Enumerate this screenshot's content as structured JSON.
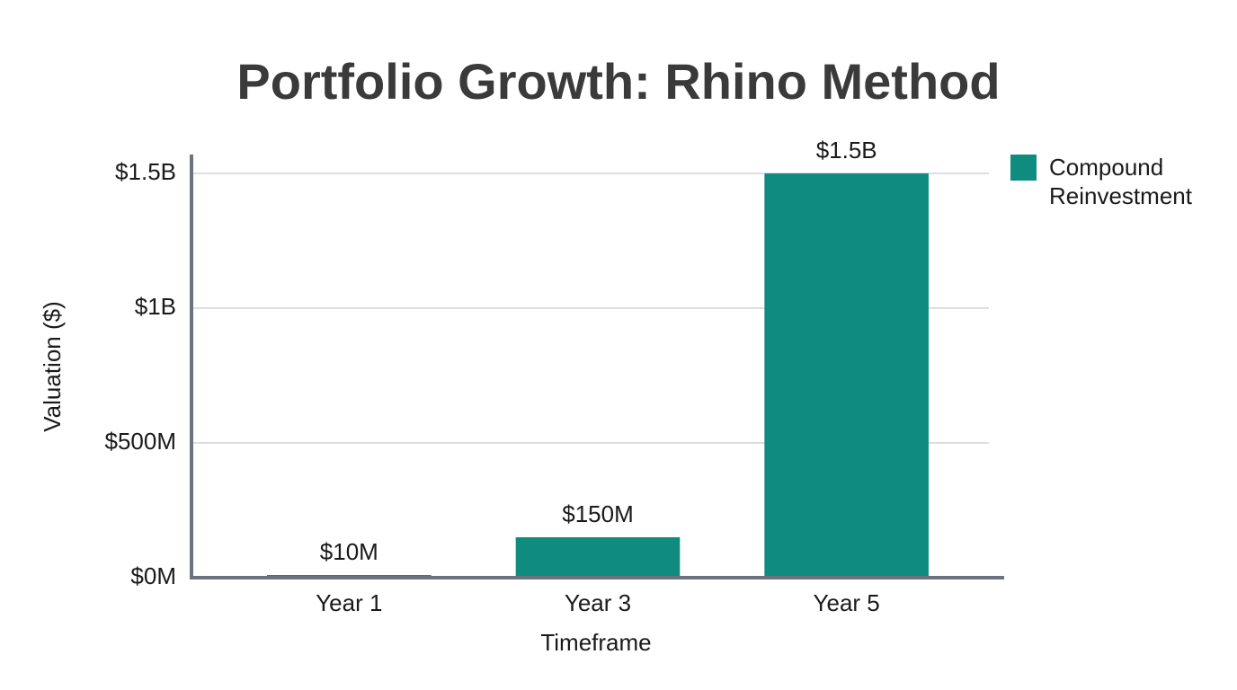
{
  "chart_data": {
    "type": "bar",
    "title": "Portfolio Growth: Rhino Method",
    "x_label": "Timeframe",
    "y_label": "Valuation ($)",
    "categories": [
      "Year 1",
      "Year 3",
      "Year 5"
    ],
    "series": [
      {
        "name": "Compound Reinvestment",
        "color": "#0f8c7f",
        "values": [
          10000000,
          150000000,
          1500000000
        ],
        "value_labels": [
          "$10M",
          "$150M",
          "$1.5B"
        ]
      }
    ],
    "ylim": [
      0,
      1570000000
    ],
    "yticks": [
      {
        "value": 0,
        "label": "$0M"
      },
      {
        "value": 500000000,
        "label": "$500M"
      },
      {
        "value": 1000000000,
        "label": "$1B"
      },
      {
        "value": 1500000000,
        "label": "$1.5B"
      }
    ],
    "grid": true,
    "legend": "right"
  }
}
